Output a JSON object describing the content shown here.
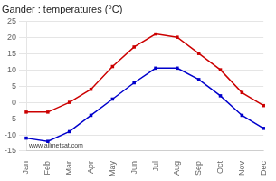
{
  "chart_data": {
    "type": "line",
    "title": "Gander : temperatures (°C)",
    "categories": [
      "Jan",
      "Feb",
      "Mar",
      "Apr",
      "May",
      "Jun",
      "Jul",
      "Aug",
      "Sep",
      "Oct",
      "Nov",
      "Dec"
    ],
    "series": [
      {
        "color": "#cc0000",
        "values": [
          -3,
          -3,
          0,
          4,
          11,
          17,
          21,
          20,
          15,
          10,
          3,
          -1
        ]
      },
      {
        "color": "#0000cc",
        "values": [
          -11,
          -12,
          -9,
          -4,
          1,
          6,
          10.5,
          10.5,
          7,
          2,
          -4,
          -8
        ]
      }
    ],
    "ylim": [
      -15,
      25
    ],
    "yticks": [
      -15,
      -10,
      -5,
      0,
      5,
      10,
      15,
      20,
      25
    ],
    "grid": true,
    "marker": "square",
    "line_style": "solid",
    "annotation": "www.allmetsat.com"
  }
}
